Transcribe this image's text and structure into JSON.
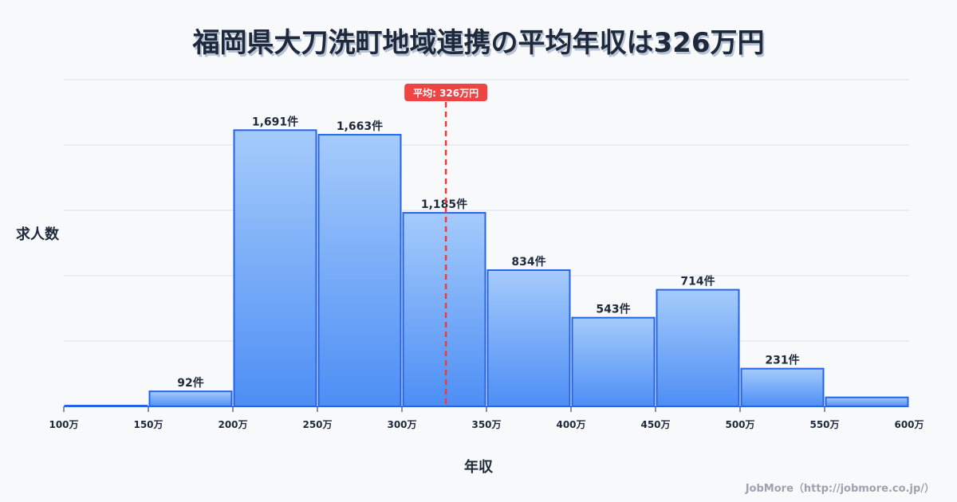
{
  "title": "福岡県大刀洗町地域連携の平均年収は326万円",
  "credit": "JobMore（http://jobmore.co.jp/）",
  "chart_data": {
    "type": "bar",
    "title": "福岡県大刀洗町地域連携の平均年収は326万円",
    "xlabel": "年収",
    "ylabel": "求人数",
    "categories": [
      "100-150万",
      "150-200万",
      "200-250万",
      "250-300万",
      "300-350万",
      "350-400万",
      "400-450万",
      "450-500万",
      "500-550万",
      "550-600万"
    ],
    "bin_edges": [
      100,
      150,
      200,
      250,
      300,
      350,
      400,
      450,
      500,
      550,
      600
    ],
    "x_tick_labels": [
      "100万",
      "150万",
      "200万",
      "250万",
      "300万",
      "350万",
      "400万",
      "450万",
      "500万",
      "550万",
      "600万"
    ],
    "values": [
      0,
      92,
      1691,
      1663,
      1185,
      834,
      543,
      714,
      231,
      55
    ],
    "bar_labels": [
      "",
      "92件",
      "1,691件",
      "1,663件",
      "1,185件",
      "834件",
      "543件",
      "714件",
      "231件",
      ""
    ],
    "ylim": [
      0,
      2000
    ],
    "y_grid_step": 400,
    "grid": true,
    "y_tick_labels_visible": false,
    "legend": "none",
    "mean": {
      "value": 326,
      "label": "平均: 326万円"
    },
    "colors": {
      "bar_top": "#a5cbfb",
      "bar_bottom": "#4d8ef5",
      "bar_border": "#2563eb",
      "mean_line": "#e53e3e",
      "mean_badge": "#ef4444",
      "grid": "#e2e6ee"
    }
  }
}
